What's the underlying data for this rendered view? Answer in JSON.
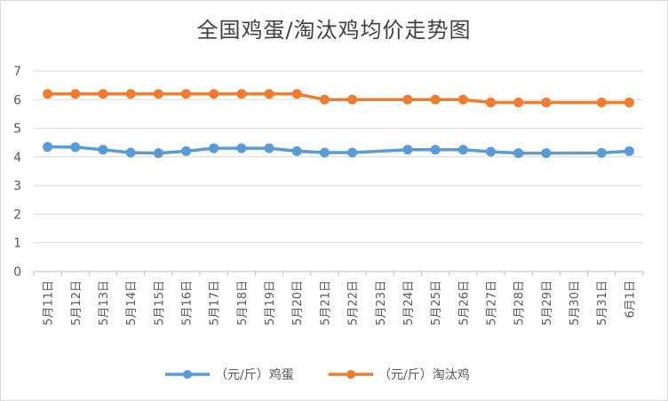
{
  "chart_data": {
    "type": "line",
    "title": "全国鸡蛋/淘汰鸡均价走势图",
    "xlabel": "",
    "ylabel": "",
    "ylim": [
      0,
      7
    ],
    "yticks": [
      0,
      1,
      2,
      3,
      4,
      5,
      6,
      7
    ],
    "grid": true,
    "legend_position": "bottom",
    "categories": [
      "5月11日",
      "5月12日",
      "5月13日",
      "5月14日",
      "5月15日",
      "5月16日",
      "5月17日",
      "5月18日",
      "5月19日",
      "5月20日",
      "5月21日",
      "5月22日",
      "5月23日",
      "5月24日",
      "5月25日",
      "5月26日",
      "5月27日",
      "5月28日",
      "5月29日",
      "5月30日",
      "5月31日",
      "6月1日"
    ],
    "series": [
      {
        "name": "（元/斤）鸡蛋",
        "color": "#5b9bd5",
        "values": [
          4.35,
          4.34,
          4.25,
          4.15,
          4.13,
          4.2,
          4.3,
          4.3,
          4.3,
          4.2,
          4.15,
          4.15,
          null,
          4.25,
          4.25,
          4.25,
          4.18,
          4.13,
          4.13,
          null,
          4.14,
          4.2
        ]
      },
      {
        "name": "（元/斤）淘汰鸡",
        "color": "#ed7d31",
        "values": [
          6.2,
          6.2,
          6.2,
          6.2,
          6.2,
          6.2,
          6.2,
          6.2,
          6.2,
          6.2,
          6.0,
          6.0,
          null,
          6.0,
          6.0,
          6.0,
          5.9,
          5.9,
          5.9,
          null,
          5.9,
          5.9
        ]
      }
    ]
  }
}
